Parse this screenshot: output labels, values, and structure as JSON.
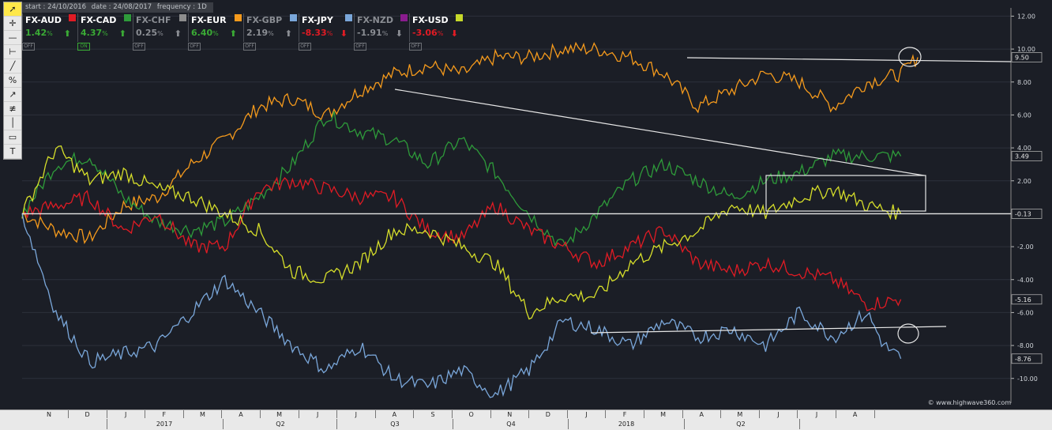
{
  "infobar": {
    "start": "start : 24/10/2016",
    "date": "date : 24/08/2017",
    "frequency": "frequency : 1D"
  },
  "toolbar": {
    "tools": [
      "pointer-icon",
      "crosshair-icon",
      "horizontal-line-icon",
      "range-icon",
      "trendline-icon",
      "percent-icon",
      "fib-icon",
      "fan-icon",
      "vertical-line-icon",
      "rectangle-icon",
      "text-icon"
    ]
  },
  "legend": [
    {
      "name": "FX-AUD",
      "value": "1.42",
      "unit": "%",
      "arrow": "up",
      "color": "#ffffff",
      "state": "OFF",
      "active": true,
      "valcolor": "#3aaa35"
    },
    {
      "name": "FX-CAD",
      "value": "4.37",
      "unit": "%",
      "arrow": "up",
      "color": "#e01b24",
      "state": "ON",
      "active": true,
      "valcolor": "#3aaa35"
    },
    {
      "name": "FX-CHF",
      "value": "0.25",
      "unit": "%",
      "arrow": "up",
      "color": "#2e9b3a",
      "state": "OFF",
      "active": false,
      "valcolor": "#8a8d93"
    },
    {
      "name": "FX-EUR",
      "value": "6.40",
      "unit": "%",
      "arrow": "up",
      "color": "#8d8d8d",
      "state": "OFF",
      "active": true,
      "valcolor": "#3aaa35"
    },
    {
      "name": "FX-GBP",
      "value": "2.19",
      "unit": "%",
      "arrow": "up",
      "color": "#f59a1c",
      "state": "OFF",
      "active": false,
      "valcolor": "#8a8d93"
    },
    {
      "name": "FX-JPY",
      "value": "-8.33",
      "unit": "%",
      "arrow": "down",
      "color": "#7aa7da",
      "state": "OFF",
      "active": true,
      "valcolor": "#e01b24"
    },
    {
      "name": "FX-NZD",
      "value": "-1.91",
      "unit": "%",
      "arrow": "down",
      "color": "#7aa7da",
      "state": "OFF",
      "active": false,
      "valcolor": "#8a8d93"
    },
    {
      "name": "FX-USD",
      "value": "-3.06",
      "unit": "%",
      "arrow": "down",
      "color": "#8a1c8e",
      "state": "OFF",
      "active": true,
      "valcolor": "#e01b24"
    }
  ],
  "extra_swatch": "#c7d92a",
  "copyright": "© www.highwave360.com",
  "chart_data": {
    "type": "line",
    "ylim": [
      -11.5,
      12.5
    ],
    "y_ticks": [
      "12.00",
      "10.00",
      "8.00",
      "6.00",
      "4.00",
      "2.00",
      "0.00",
      "-2.00",
      "-4.00",
      "-6.00",
      "-8.00",
      "-10.00"
    ],
    "y_tick_values": [
      12,
      10,
      8,
      6,
      4,
      2,
      0,
      -2,
      -4,
      -6,
      -8,
      -10
    ],
    "months": [
      "N",
      "D",
      "J",
      "F",
      "M",
      "A",
      "M",
      "J",
      "J",
      "A",
      "S",
      "O",
      "N",
      "D",
      "J",
      "F",
      "M",
      "A",
      "M",
      "J",
      "J",
      "A"
    ],
    "quarters": [
      "2017",
      "Q2",
      "Q3",
      "Q4",
      "2018",
      "Q2"
    ],
    "series": [
      {
        "color": "#f59a1c",
        "end_label": "9.50",
        "points": [
          [
            0,
            0
          ],
          [
            20,
            -1
          ],
          [
            40,
            -1.5
          ],
          [
            60,
            0.5
          ],
          [
            80,
            1
          ],
          [
            100,
            3
          ],
          [
            120,
            4.5
          ],
          [
            140,
            6.5
          ],
          [
            160,
            7
          ],
          [
            180,
            6
          ],
          [
            200,
            7.5
          ],
          [
            220,
            8.5
          ],
          [
            240,
            9
          ],
          [
            260,
            8.5
          ],
          [
            280,
            9.5
          ],
          [
            300,
            9.5
          ],
          [
            320,
            10
          ],
          [
            340,
            10
          ],
          [
            360,
            9.5
          ],
          [
            380,
            8.5
          ],
          [
            400,
            6.5
          ],
          [
            420,
            7.5
          ],
          [
            440,
            8.5
          ],
          [
            460,
            8
          ],
          [
            480,
            6.5
          ],
          [
            500,
            8
          ],
          [
            520,
            8.5
          ],
          [
            530,
            9.5
          ]
        ]
      },
      {
        "color": "#2e9b3a",
        "end_label": "3.49",
        "points": [
          [
            0,
            0
          ],
          [
            20,
            3
          ],
          [
            40,
            3.5
          ],
          [
            60,
            1
          ],
          [
            80,
            -0.5
          ],
          [
            100,
            -1
          ],
          [
            120,
            -0.5
          ],
          [
            140,
            1
          ],
          [
            160,
            3
          ],
          [
            180,
            6
          ],
          [
            200,
            5
          ],
          [
            220,
            4.5
          ],
          [
            240,
            3
          ],
          [
            260,
            4.5
          ],
          [
            280,
            2.5
          ],
          [
            300,
            0
          ],
          [
            320,
            -2
          ],
          [
            340,
            0
          ],
          [
            360,
            2
          ],
          [
            380,
            3
          ],
          [
            400,
            2
          ],
          [
            420,
            1
          ],
          [
            440,
            2
          ],
          [
            460,
            2.5
          ],
          [
            480,
            3.5
          ],
          [
            500,
            3.5
          ],
          [
            520,
            3.5
          ]
        ]
      },
      {
        "color": "#e01b24",
        "end_label": "-5.16",
        "points": [
          [
            0,
            0
          ],
          [
            20,
            0.5
          ],
          [
            40,
            1
          ],
          [
            60,
            -1
          ],
          [
            80,
            0
          ],
          [
            100,
            -2
          ],
          [
            120,
            -2
          ],
          [
            140,
            1.5
          ],
          [
            160,
            2
          ],
          [
            180,
            1.5
          ],
          [
            200,
            1
          ],
          [
            220,
            1
          ],
          [
            240,
            -1
          ],
          [
            260,
            -1.5
          ],
          [
            280,
            0.5
          ],
          [
            300,
            -1
          ],
          [
            320,
            -2
          ],
          [
            340,
            -3
          ],
          [
            360,
            -2
          ],
          [
            380,
            -1
          ],
          [
            400,
            -3
          ],
          [
            420,
            -3.5
          ],
          [
            440,
            -3
          ],
          [
            460,
            -3.5
          ],
          [
            480,
            -4
          ],
          [
            500,
            -5.5
          ],
          [
            520,
            -5.2
          ]
        ]
      },
      {
        "color": "#d6de2a",
        "end_label": "-0.13",
        "points": [
          [
            0,
            0
          ],
          [
            20,
            4
          ],
          [
            40,
            2
          ],
          [
            60,
            2.5
          ],
          [
            80,
            1.5
          ],
          [
            100,
            1
          ],
          [
            120,
            0
          ],
          [
            140,
            -1
          ],
          [
            160,
            -3.5
          ],
          [
            180,
            -4
          ],
          [
            200,
            -3
          ],
          [
            220,
            -1
          ],
          [
            240,
            -1
          ],
          [
            260,
            -2
          ],
          [
            280,
            -3
          ],
          [
            300,
            -6
          ],
          [
            320,
            -5
          ],
          [
            340,
            -5
          ],
          [
            360,
            -3
          ],
          [
            380,
            -2
          ],
          [
            400,
            -1
          ],
          [
            420,
            0.5
          ],
          [
            440,
            0
          ],
          [
            460,
            1
          ],
          [
            480,
            1.5
          ],
          [
            500,
            0.5
          ],
          [
            520,
            0
          ]
        ]
      },
      {
        "color": "#7aa7da",
        "end_label": "-8.76",
        "points": [
          [
            0,
            0
          ],
          [
            20,
            -6
          ],
          [
            40,
            -9
          ],
          [
            60,
            -8.5
          ],
          [
            80,
            -8
          ],
          [
            100,
            -6
          ],
          [
            120,
            -4
          ],
          [
            140,
            -6
          ],
          [
            160,
            -8
          ],
          [
            180,
            -9.5
          ],
          [
            200,
            -8
          ],
          [
            220,
            -10
          ],
          [
            240,
            -10.5
          ],
          [
            260,
            -9.5
          ],
          [
            280,
            -11
          ],
          [
            300,
            -9.5
          ],
          [
            320,
            -6.5
          ],
          [
            340,
            -7
          ],
          [
            360,
            -8
          ],
          [
            380,
            -6.5
          ],
          [
            400,
            -7.5
          ],
          [
            420,
            -7
          ],
          [
            440,
            -8
          ],
          [
            460,
            -6
          ],
          [
            480,
            -7.5
          ],
          [
            500,
            -6
          ],
          [
            510,
            -8
          ],
          [
            520,
            -8.8
          ]
        ]
      }
    ]
  }
}
